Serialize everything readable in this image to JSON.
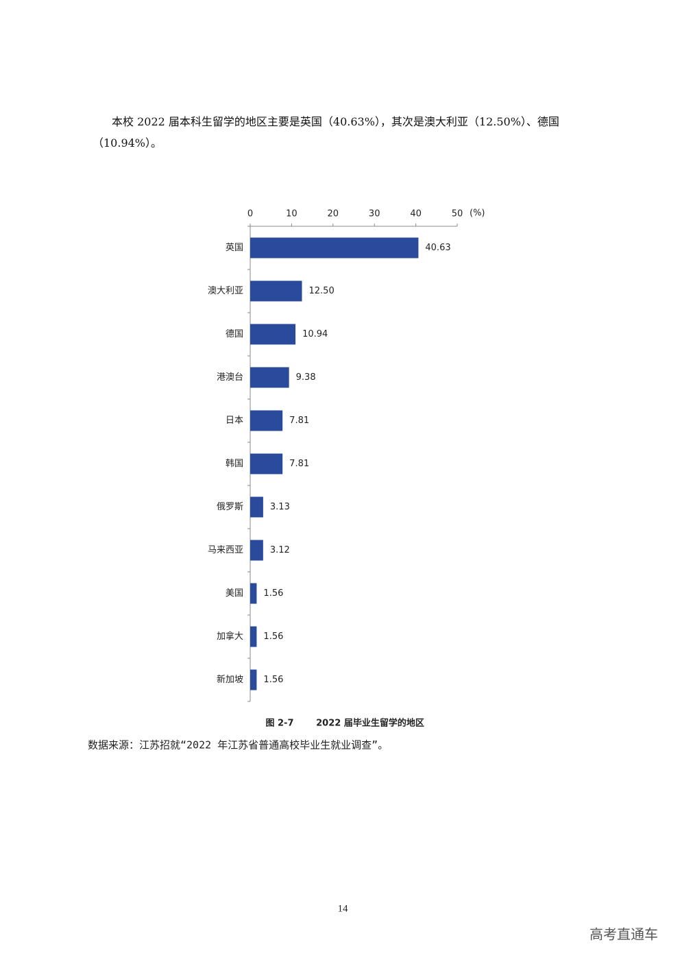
{
  "paragraph": "本校 2022 届本科生留学的地区主要是英国（40.63%），其次是澳大利亚（12.50%）、德国（10.94%）。",
  "chart_data": {
    "type": "bar",
    "orientation": "horizontal",
    "xlabel": "(%)",
    "categories": [
      "英国",
      "澳大利亚",
      "德国",
      "港澳台",
      "日本",
      "韩国",
      "俄罗斯",
      "马来西亚",
      "美国",
      "加拿大",
      "新加坡"
    ],
    "values": [
      40.63,
      12.5,
      10.94,
      9.38,
      7.81,
      7.81,
      3.13,
      3.12,
      1.56,
      1.56,
      1.56
    ],
    "value_labels": [
      "40.63",
      "12.50",
      "10.94",
      "9.38",
      "7.81",
      "7.81",
      "3.13",
      "3.12",
      "1.56",
      "1.56",
      "1.56"
    ],
    "color": "#2a4b9b",
    "xlim": [
      0,
      50
    ],
    "xticks": [
      0,
      10,
      20,
      30,
      40,
      50
    ]
  },
  "caption": {
    "figure": "图 2-7",
    "title": "2022 届毕业生留学的地区"
  },
  "source": "数据来源：江苏招就“2022 年江苏省普通高校毕业生就业调查”。",
  "page_number": "14",
  "watermark": "高考直通车"
}
